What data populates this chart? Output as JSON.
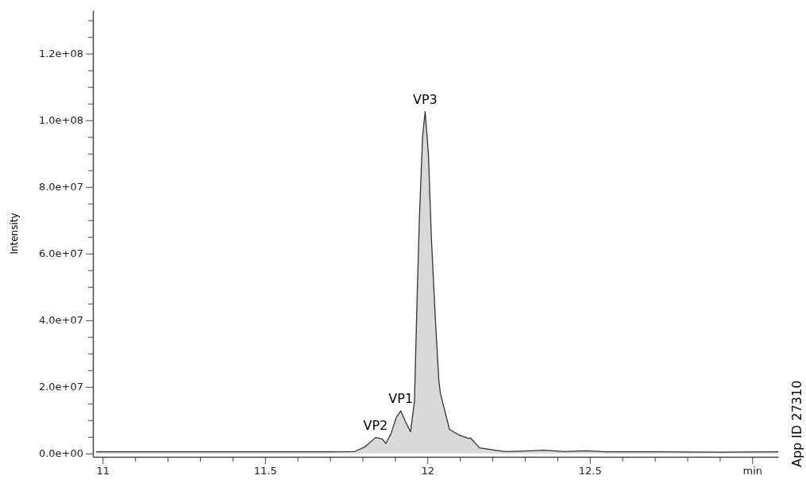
{
  "chart_data": {
    "type": "area",
    "ylabel": "Intensity",
    "x": [
      10.98,
      11.2,
      11.4,
      11.6,
      11.7,
      11.776,
      11.808,
      11.84,
      11.86,
      11.872,
      11.888,
      11.904,
      11.918,
      11.932,
      11.948,
      11.96,
      11.968,
      11.975,
      11.985,
      11.993,
      12.003,
      12.012,
      12.024,
      12.035,
      12.04,
      12.068,
      12.096,
      12.128,
      12.132,
      12.16,
      12.208,
      12.24,
      12.288,
      12.36,
      12.42,
      12.49,
      12.55,
      12.7,
      12.9,
      13.08
    ],
    "series": [
      {
        "color": "#333333",
        "values": [
          500000,
          500000,
          500000,
          500000,
          500000,
          600000,
          2000000,
          4800000,
          4400000,
          3000000,
          6000000,
          10800000,
          12800000,
          9600000,
          6500000,
          15600000,
          45800000,
          70000000,
          95000000,
          102600000,
          90000000,
          65000000,
          41000000,
          22000000,
          18000000,
          7200000,
          5600000,
          4500000,
          4700000,
          1700000,
          1000000,
          600000,
          700000,
          1000000,
          600000,
          800000,
          500000,
          500000,
          400000,
          500000
        ]
      }
    ],
    "xlim": [
      10.97,
      13.08
    ],
    "ylim": [
      -1000000,
      133000000
    ],
    "xticks": [
      11,
      {
        "value": 11.1,
        "label": null
      },
      {
        "value": 11.2,
        "label": null
      },
      {
        "value": 11.3,
        "label": null
      },
      {
        "value": 11.4,
        "label": null
      },
      11.5,
      {
        "value": 11.6,
        "label": null
      },
      {
        "value": 11.7,
        "label": null
      },
      {
        "value": 11.8,
        "label": null
      },
      {
        "value": 11.9,
        "label": null
      },
      12,
      {
        "value": 12.1,
        "label": null
      },
      {
        "value": 12.2,
        "label": null
      },
      {
        "value": 12.3,
        "label": null
      },
      {
        "value": 12.4,
        "label": null
      },
      12.5,
      {
        "value": 12.6,
        "label": null
      },
      {
        "value": 12.7,
        "label": null
      },
      {
        "value": 12.8,
        "label": null
      },
      {
        "value": 12.9,
        "label": null
      },
      {
        "value": 13,
        "label": "min"
      }
    ],
    "yticks": [
      {
        "value": 0,
        "label": "0.0e+00"
      },
      {
        "value": 5000000,
        "label": null
      },
      {
        "value": 10000000,
        "label": null
      },
      {
        "value": 15000000,
        "label": null
      },
      {
        "value": 20000000,
        "label": "2.0e+07"
      },
      {
        "value": 25000000,
        "label": null
      },
      {
        "value": 30000000,
        "label": null
      },
      {
        "value": 35000000,
        "label": null
      },
      {
        "value": 40000000,
        "label": "4.0e+07"
      },
      {
        "value": 45000000,
        "label": null
      },
      {
        "value": 50000000,
        "label": null
      },
      {
        "value": 55000000,
        "label": null
      },
      {
        "value": 60000000,
        "label": "6.0e+07"
      },
      {
        "value": 65000000,
        "label": null
      },
      {
        "value": 70000000,
        "label": null
      },
      {
        "value": 75000000,
        "label": null
      },
      {
        "value": 80000000,
        "label": "8.0e+07"
      },
      {
        "value": 85000000,
        "label": null
      },
      {
        "value": 90000000,
        "label": null
      },
      {
        "value": 95000000,
        "label": null
      },
      {
        "value": 100000000,
        "label": "1.0e+08"
      },
      {
        "value": 105000000,
        "label": null
      },
      {
        "value": 110000000,
        "label": null
      },
      {
        "value": 115000000,
        "label": null
      },
      {
        "value": 120000000,
        "label": "1.2e+08"
      },
      {
        "value": 125000000,
        "label": null
      },
      {
        "value": 130000000,
        "label": null
      }
    ],
    "grid": false,
    "annotations": [
      {
        "text": "VP2",
        "x": 11.84,
        "y": 4800000
      },
      {
        "text": "VP1",
        "x": 11.918,
        "y": 12800000
      },
      {
        "text": "VP3",
        "x": 11.993,
        "y": 102600000
      },
      "App ID 27310"
    ]
  }
}
